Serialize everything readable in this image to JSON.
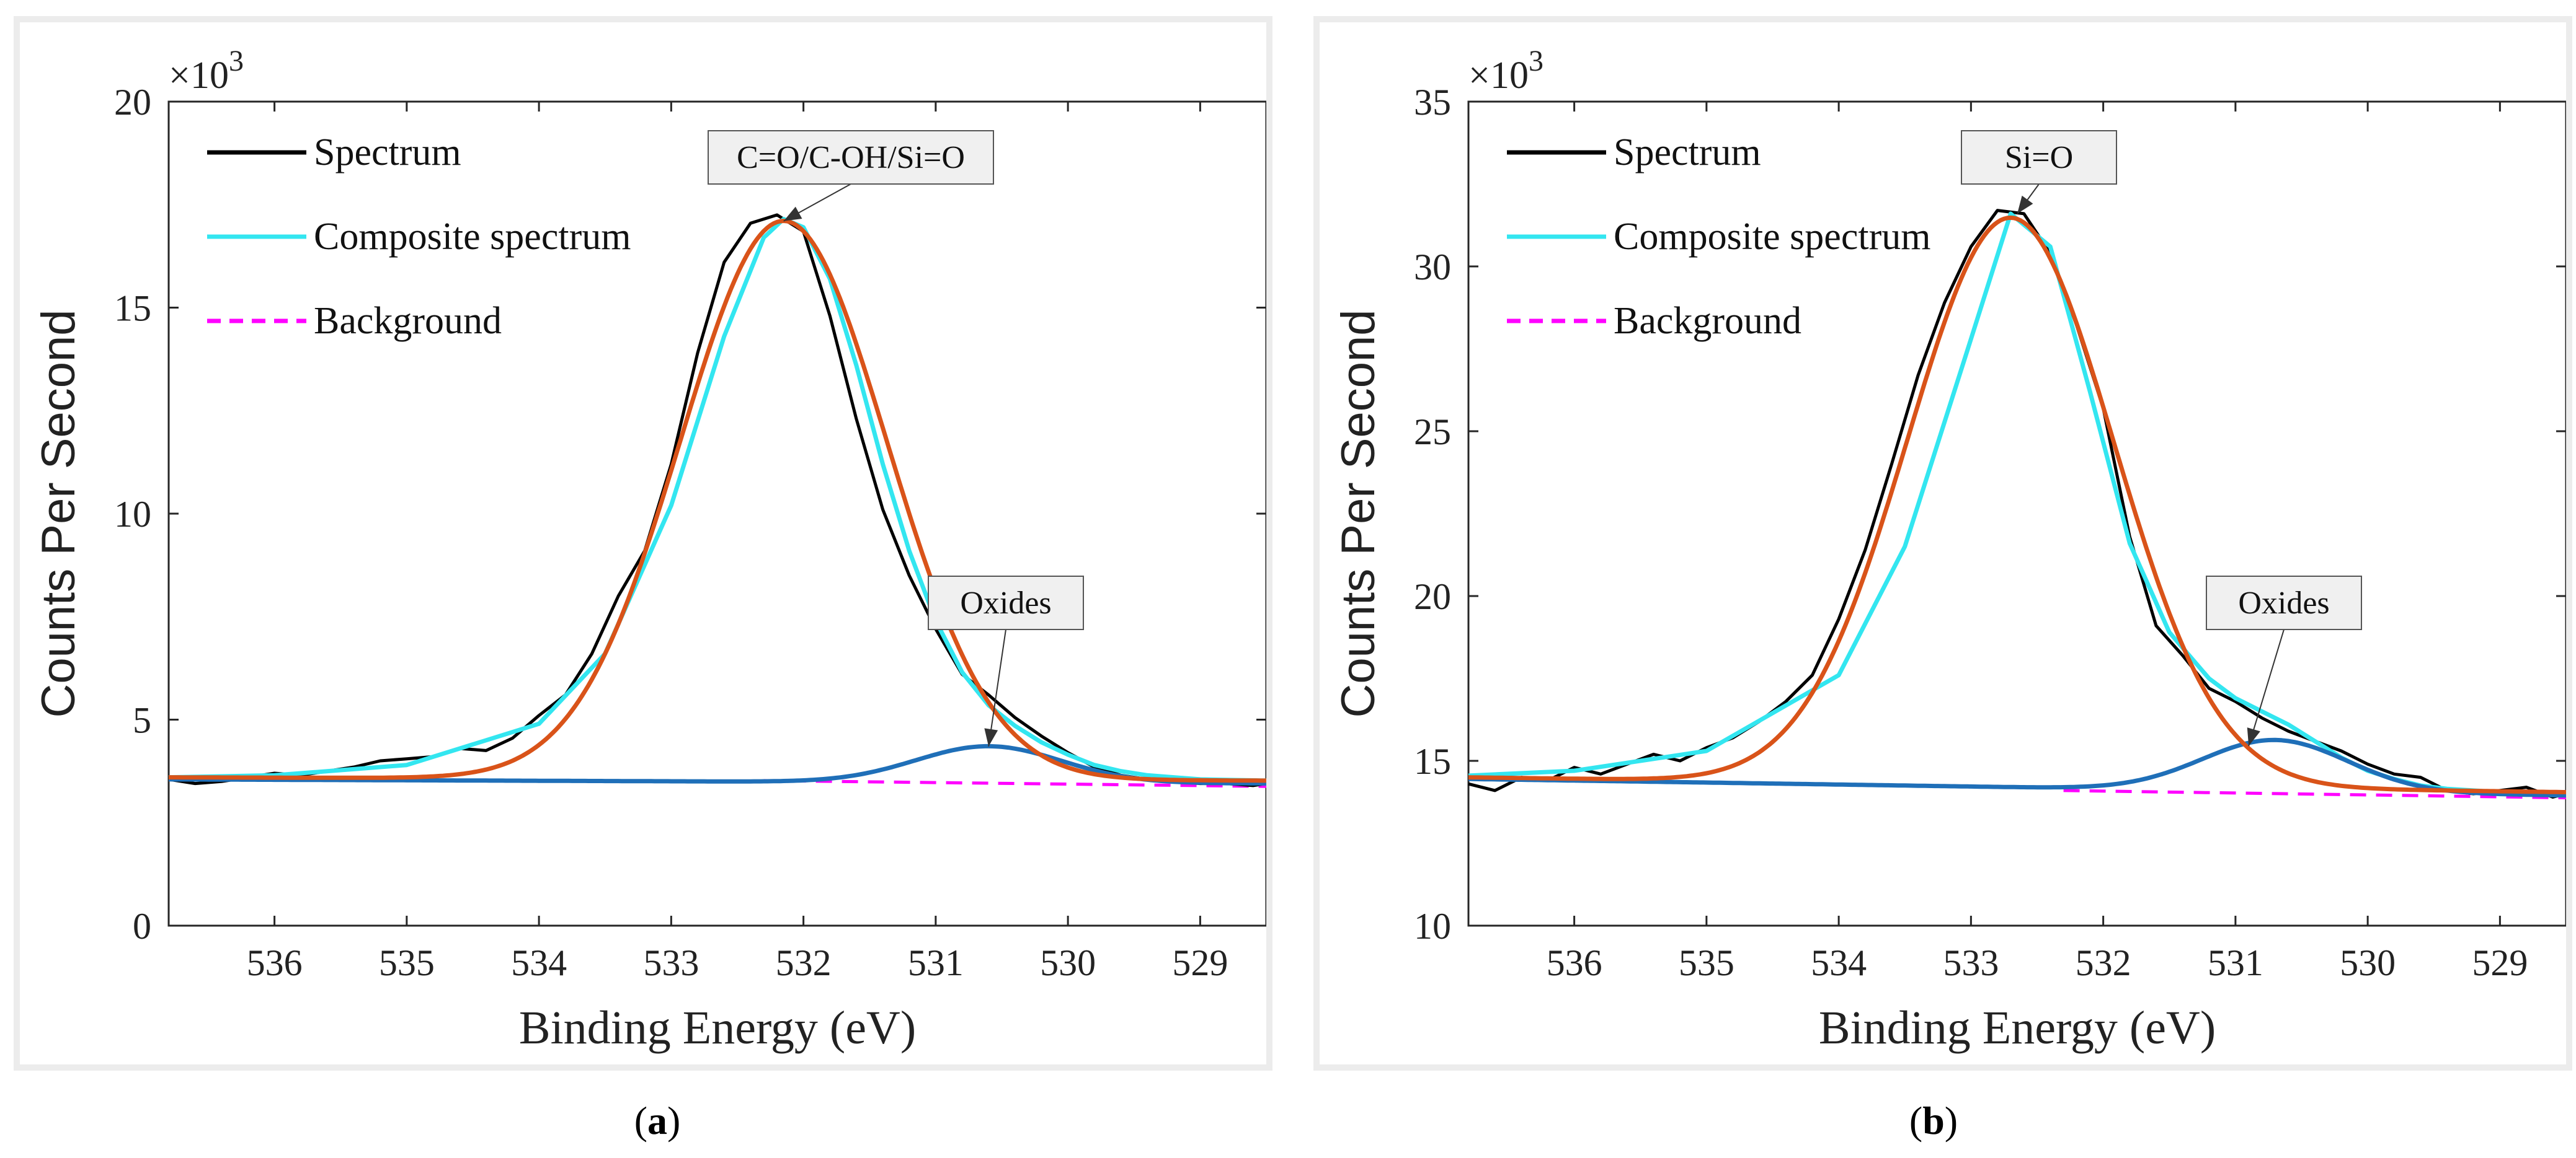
{
  "colors": {
    "spectrum": "#000000",
    "composite": "#33e6f0",
    "background": "#ff00ff",
    "peak_main": "#d95319",
    "peak_oxide": "#1f6fb8",
    "axis": "#262626",
    "frame": "#ececec"
  },
  "chart_data": [
    {
      "type": "line",
      "panel": "a",
      "caption_open": "(",
      "caption_letter": "a",
      "caption_close": ")",
      "xlabel": "Binding Energy (eV)",
      "ylabel": "Counts Per Second",
      "multiplier_base": "×10",
      "multiplier_exp": "3",
      "xlim": [
        528.5,
        536.8
      ],
      "xreversed": true,
      "ylim": [
        0,
        20
      ],
      "xticks": [
        536,
        535,
        534,
        533,
        532,
        531,
        530,
        529
      ],
      "yticks": [
        0,
        5,
        10,
        15,
        20
      ],
      "legend_position": "top-left",
      "legend": [
        "Spectrum",
        "Composite spectrum",
        "Background"
      ],
      "annotations": [
        {
          "text": "C=O/C-OH/Si=O",
          "x": 532.15,
          "y": 17.1
        },
        {
          "text": "Oxides",
          "x": 530.6,
          "y": 4.35
        }
      ],
      "background_series": {
        "x": [
          532.3,
          528.5
        ],
        "y": [
          3.52,
          3.38
        ]
      },
      "peaks": [
        {
          "name": "C=O/C-OH/Si=O",
          "center": 532.15,
          "amplitude": 13.55,
          "sigma": 0.78,
          "baseline_left": 3.6,
          "baseline_right": 3.52,
          "baseline_x": [
            536.8,
            528.5
          ]
        },
        {
          "name": "Oxides",
          "center": 530.6,
          "amplitude": 0.88,
          "sigma": 0.55,
          "baseline_left": 3.55,
          "baseline_right": 3.45,
          "baseline_x": [
            536.8,
            528.5
          ]
        }
      ],
      "spectrum": {
        "x": [
          536.8,
          536.6,
          536.4,
          536.2,
          536.0,
          535.8,
          535.6,
          535.4,
          535.2,
          535.0,
          534.8,
          534.6,
          534.4,
          534.2,
          534.0,
          533.8,
          533.6,
          533.4,
          533.2,
          533.0,
          532.8,
          532.6,
          532.4,
          532.2,
          532.0,
          531.8,
          531.6,
          531.4,
          531.2,
          531.0,
          530.8,
          530.6,
          530.4,
          530.2,
          530.0,
          529.8,
          529.6,
          529.4,
          529.2,
          529.0,
          528.8,
          528.6,
          528.5
        ],
        "y": [
          3.55,
          3.45,
          3.5,
          3.6,
          3.7,
          3.65,
          3.75,
          3.85,
          4.0,
          4.05,
          4.1,
          4.3,
          4.25,
          4.55,
          5.1,
          5.6,
          6.6,
          8.0,
          9.1,
          11.2,
          13.9,
          16.1,
          17.05,
          17.25,
          16.85,
          14.8,
          12.3,
          10.1,
          8.5,
          7.2,
          6.1,
          5.6,
          5.05,
          4.6,
          4.2,
          3.85,
          3.65,
          3.55,
          3.5,
          3.45,
          3.45,
          3.4,
          3.45
        ]
      },
      "composite_series": {
        "x": [
          536.8,
          536.0,
          535.0,
          534.0,
          533.5,
          533.0,
          532.6,
          532.3,
          532.15,
          532.0,
          531.8,
          531.6,
          531.4,
          531.2,
          531.0,
          530.8,
          530.6,
          530.4,
          530.2,
          530.0,
          529.8,
          529.6,
          529.4,
          529.0,
          528.5
        ],
        "y": [
          3.6,
          3.65,
          3.9,
          4.9,
          6.6,
          10.2,
          14.3,
          16.7,
          17.15,
          16.95,
          15.7,
          13.6,
          11.2,
          9.1,
          7.4,
          6.15,
          5.35,
          4.85,
          4.45,
          4.15,
          3.9,
          3.75,
          3.65,
          3.55,
          3.52
        ]
      }
    },
    {
      "type": "line",
      "panel": "b",
      "caption_open": "(",
      "caption_letter": "b",
      "caption_close": ")",
      "xlabel": "Binding Energy (eV)",
      "ylabel": "Counts Per Second",
      "multiplier_base": "×10",
      "multiplier_exp": "3",
      "xlim": [
        528.5,
        536.8
      ],
      "xreversed": true,
      "ylim": [
        10,
        35
      ],
      "xticks": [
        536,
        535,
        534,
        533,
        532,
        531,
        530,
        529
      ],
      "yticks": [
        10,
        15,
        20,
        25,
        30,
        35
      ],
      "legend_position": "top-left",
      "legend": [
        "Spectrum",
        "Composite spectrum",
        "Background"
      ],
      "annotations": [
        {
          "text": "Si=O",
          "x": 532.65,
          "y": 31.6
        },
        {
          "text": "Oxides",
          "x": 530.9,
          "y": 15.45
        }
      ],
      "background_series": {
        "x": [
          532.3,
          528.5
        ],
        "y": [
          14.1,
          13.88
        ]
      },
      "peaks": [
        {
          "name": "Si=O",
          "center": 532.7,
          "amplitude": 17.2,
          "sigma": 0.78,
          "baseline_left": 14.5,
          "baseline_right": 14.05,
          "baseline_x": [
            536.8,
            528.5
          ]
        },
        {
          "name": "Oxides",
          "center": 530.7,
          "amplitude": 1.55,
          "sigma": 0.55,
          "baseline_left": 14.45,
          "baseline_right": 13.95,
          "baseline_x": [
            536.8,
            528.5
          ]
        }
      ],
      "spectrum": {
        "x": [
          536.8,
          536.6,
          536.4,
          536.2,
          536.0,
          535.8,
          535.6,
          535.4,
          535.2,
          535.0,
          534.8,
          534.6,
          534.4,
          534.2,
          534.0,
          533.8,
          533.6,
          533.4,
          533.2,
          533.0,
          532.8,
          532.6,
          532.4,
          532.2,
          532.0,
          531.8,
          531.6,
          531.4,
          531.2,
          531.0,
          530.8,
          530.6,
          530.4,
          530.2,
          530.0,
          529.8,
          529.6,
          529.4,
          529.2,
          529.0,
          528.8,
          528.6,
          528.5
        ],
        "y": [
          14.3,
          14.1,
          14.5,
          14.4,
          14.8,
          14.6,
          14.9,
          15.2,
          15.0,
          15.4,
          15.7,
          16.2,
          16.8,
          17.6,
          19.3,
          21.4,
          24.0,
          26.7,
          28.9,
          30.6,
          31.7,
          31.6,
          30.4,
          28.2,
          25.7,
          21.8,
          19.1,
          18.2,
          17.2,
          16.8,
          16.3,
          15.9,
          15.6,
          15.3,
          14.9,
          14.6,
          14.5,
          14.1,
          14.0,
          14.1,
          14.2,
          13.9,
          14.0
        ]
      },
      "composite_series": {
        "x": [
          536.8,
          536.0,
          535.0,
          534.0,
          533.5,
          533.0,
          532.7,
          532.4,
          532.1,
          531.8,
          531.5,
          531.2,
          531.0,
          530.8,
          530.6,
          530.4,
          530.2,
          530.0,
          529.8,
          529.6,
          529.4,
          529.0,
          528.5
        ],
        "y": [
          14.55,
          14.7,
          15.3,
          17.6,
          21.5,
          27.8,
          31.6,
          30.6,
          26.2,
          21.6,
          18.9,
          17.5,
          16.9,
          16.5,
          16.1,
          15.6,
          15.1,
          14.7,
          14.45,
          14.25,
          14.15,
          14.05,
          14.02
        ]
      }
    }
  ]
}
